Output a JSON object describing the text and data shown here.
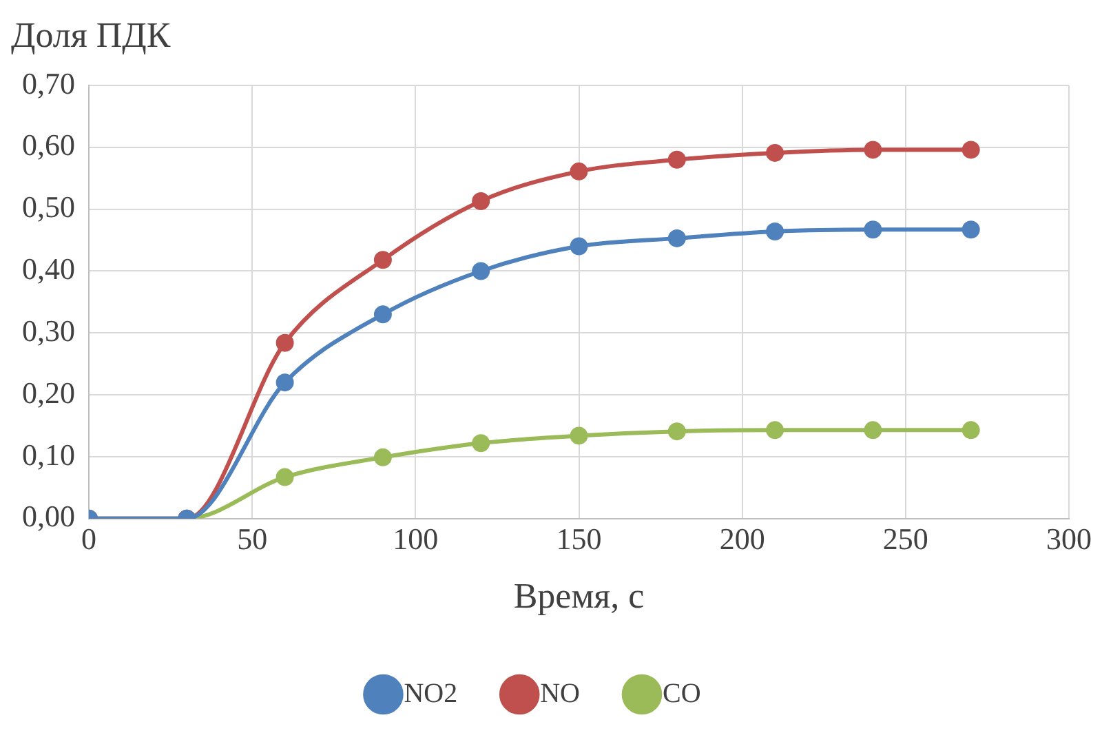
{
  "chart_data": {
    "type": "line",
    "xlabel": "Время, с",
    "ylabel": "Доля ПДК",
    "x": [
      0,
      30,
      60,
      90,
      120,
      150,
      180,
      210,
      240,
      270
    ],
    "series": [
      {
        "name": "NO2",
        "color": "#4f81bd",
        "values": [
          0,
          0,
          0.22,
          0.33,
          0.4,
          0.44,
          0.453,
          0.464,
          0.467,
          0.467
        ]
      },
      {
        "name": "NO",
        "color": "#c0504d",
        "values": [
          0,
          0,
          0.284,
          0.418,
          0.513,
          0.561,
          0.58,
          0.591,
          0.596,
          0.596
        ]
      },
      {
        "name": "CO",
        "color": "#9bbb59",
        "values": [
          0,
          0,
          0.067,
          0.099,
          0.122,
          0.134,
          0.141,
          0.143,
          0.143,
          0.143
        ]
      }
    ],
    "xlim": [
      0,
      300
    ],
    "xticks": [
      0,
      50,
      100,
      150,
      200,
      250,
      300
    ],
    "ylim": [
      0,
      0.7
    ],
    "yticks": [
      {
        "value": 0,
        "label": "0,00"
      },
      {
        "value": 0.1,
        "label": "0,10"
      },
      {
        "value": 0.2,
        "label": "0,20"
      },
      {
        "value": 0.3,
        "label": "0,30"
      },
      {
        "value": 0.4,
        "label": "0,40"
      },
      {
        "value": 0.5,
        "label": "0,50"
      },
      {
        "value": 0.6,
        "label": "0,60"
      },
      {
        "value": 0.7,
        "label": "0,70"
      }
    ],
    "grid": true,
    "legend": "bottom",
    "marker": "circle",
    "line_style": "solid"
  }
}
